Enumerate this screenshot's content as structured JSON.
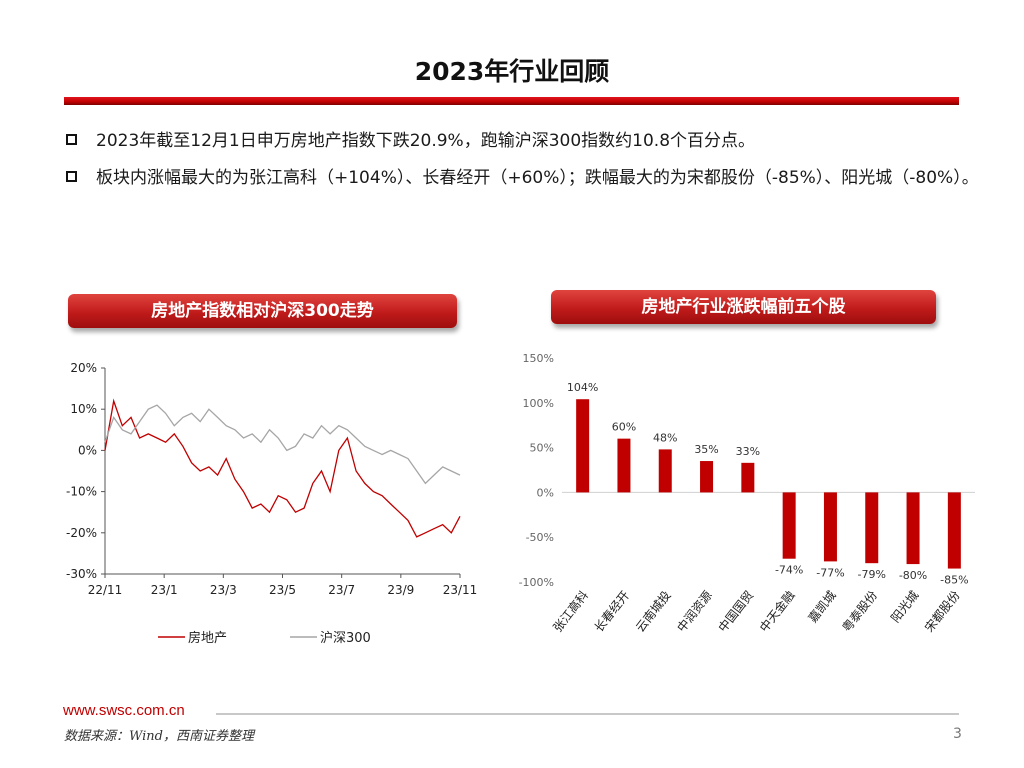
{
  "page": {
    "title": "2023年行业回顾",
    "bullets": [
      "2023年截至12月1日申万房地产指数下跌20.9%，跑输沪深300指数约10.8个百分点。",
      "板块内涨幅最大的为张江高科（+104%）、长春经开（+60%）；跌幅最大的为宋都股份（-85%）、阳光城（-80%）。"
    ],
    "left_panel_title": "房地产指数相对沪深300走势",
    "right_panel_title": "房地产行业涨跌幅前五个股",
    "footer_url": "www.swsc.com.cn",
    "footer_source": "数据来源：Wind，西南证券整理",
    "page_number": "3"
  },
  "colors": {
    "accent": "#c00000",
    "series_red": "#c00000",
    "series_gray": "#a6a6a6"
  },
  "chart_data": [
    {
      "type": "line",
      "title": "房地产指数相对沪深300走势",
      "x_ticks": [
        "22/11",
        "23/1",
        "23/3",
        "23/5",
        "23/7",
        "23/9",
        "23/11"
      ],
      "y_ticks": [
        "20%",
        "10%",
        "0%",
        "-10%",
        "-20%",
        "-30%"
      ],
      "ylim": [
        -30,
        20
      ],
      "legend_position": "bottom",
      "series": [
        {
          "name": "房地产",
          "color": "#c00000",
          "values": [
            0,
            12,
            6,
            8,
            3,
            4,
            3,
            2,
            4,
            1,
            -3,
            -5,
            -4,
            -6,
            -2,
            -7,
            -10,
            -14,
            -13,
            -15,
            -11,
            -12,
            -15,
            -14,
            -8,
            -5,
            -10,
            0,
            3,
            -5,
            -8,
            -10,
            -11,
            -13,
            -15,
            -17,
            -21,
            -20,
            -19,
            -18,
            -20,
            -16
          ]
        },
        {
          "name": "沪深300",
          "color": "#a6a6a6",
          "values": [
            2,
            8,
            5,
            4,
            7,
            10,
            11,
            9,
            6,
            8,
            9,
            7,
            10,
            8,
            6,
            5,
            3,
            4,
            2,
            5,
            3,
            0,
            1,
            4,
            3,
            6,
            4,
            6,
            5,
            3,
            1,
            0,
            -1,
            0,
            -1,
            -2,
            -5,
            -8,
            -6,
            -4,
            -5,
            -6
          ]
        }
      ]
    },
    {
      "type": "bar",
      "title": "房地产行业涨跌幅前五个股",
      "categories": [
        "张江高科",
        "长春经开",
        "云南城投",
        "中润资源",
        "中国国贸",
        "中天金融",
        "嘉凯城",
        "粤泰股份",
        "阳光城",
        "宋都股份"
      ],
      "values": [
        104,
        60,
        48,
        35,
        33,
        -74,
        -77,
        -79,
        -80,
        -85
      ],
      "labels": [
        "104%",
        "60%",
        "48%",
        "35%",
        "33%",
        "-74%",
        "-77%",
        "-79%",
        "-80%",
        "-85%"
      ],
      "y_ticks": [
        "150%",
        "100%",
        "50%",
        "0%",
        "-50%",
        "-100%"
      ],
      "ylim": [
        -100,
        150
      ],
      "color": "#c00000"
    }
  ]
}
